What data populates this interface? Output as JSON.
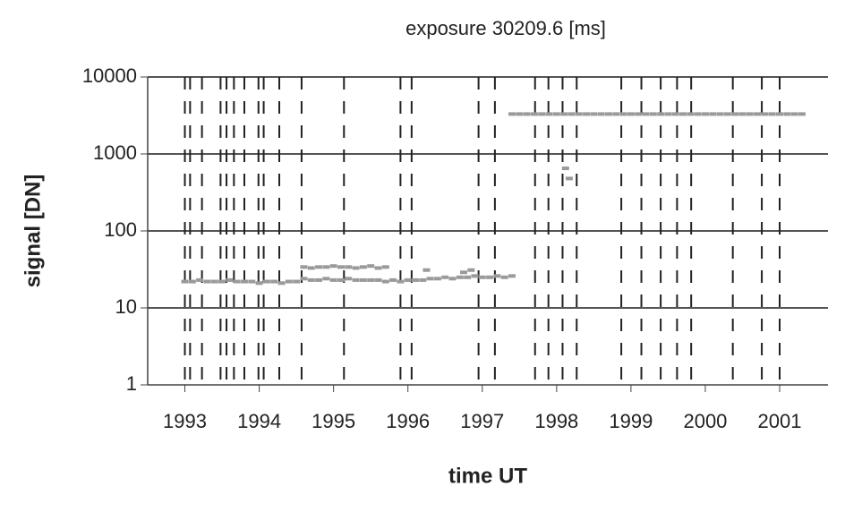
{
  "chart_data": {
    "type": "scatter",
    "title": "exposure 30209.6 [ms]",
    "x_label": "time UT",
    "y_label": "signal [DN]",
    "log_y": true,
    "grid": true,
    "color": "#9a9a9a",
    "marker_line_color": "#222222",
    "xlim": [
      1992.5,
      2001.65
    ],
    "ylim": [
      1,
      10000
    ],
    "xticks": [
      1993,
      1994,
      1995,
      1996,
      1997,
      1998,
      1999,
      2000,
      2001
    ],
    "yticks": [
      1,
      10,
      100,
      1000,
      10000
    ],
    "marker_lines": [
      1993.0,
      1993.07,
      1993.23,
      1993.48,
      1993.56,
      1993.66,
      1993.8,
      1993.99,
      1994.06,
      1994.27,
      1994.57,
      1995.14,
      1995.9,
      1996.05,
      1996.95,
      1997.17,
      1997.71,
      1997.89,
      1998.08,
      1998.27,
      1998.87,
      1999.14,
      1999.4,
      1999.62,
      1999.81,
      2000.37,
      2000.76,
      2001.0
    ],
    "x": [
      1993.0,
      1993.1,
      1993.2,
      1993.3,
      1993.4,
      1993.5,
      1993.6,
      1993.7,
      1993.8,
      1993.9,
      1994.0,
      1994.1,
      1994.2,
      1994.3,
      1994.4,
      1994.5,
      1994.6,
      1994.7,
      1994.8,
      1994.9,
      1995.0,
      1995.1,
      1995.2,
      1995.3,
      1995.4,
      1995.5,
      1995.6,
      1995.7,
      1995.8,
      1995.9,
      1996.0,
      1996.1,
      1996.2,
      1996.3,
      1996.4,
      1996.5,
      1996.6,
      1996.7,
      1996.8,
      1996.9,
      1997.0,
      1997.1,
      1997.2,
      1997.3,
      1997.4,
      1994.6,
      1994.7,
      1994.8,
      1994.9,
      1995.0,
      1995.1,
      1995.2,
      1995.3,
      1995.4,
      1995.5,
      1995.6,
      1995.7,
      1996.25,
      1996.75,
      1996.85,
      1997.4,
      1997.5,
      1997.6,
      1997.7,
      1997.8,
      1997.9,
      1998.0,
      1998.1,
      1998.2,
      1998.3,
      1998.4,
      1998.5,
      1998.6,
      1998.7,
      1998.8,
      1998.9,
      1999.0,
      1999.1,
      1999.2,
      1999.3,
      1999.4,
      1999.5,
      1999.6,
      1999.7,
      1999.8,
      1999.9,
      2000.0,
      2000.1,
      2000.2,
      2000.3,
      2000.4,
      2000.5,
      2000.6,
      2000.7,
      2000.8,
      2000.9,
      2001.0,
      2001.1,
      2001.2,
      2001.3,
      1998.12,
      1998.17
    ],
    "values": [
      22,
      22,
      23,
      22,
      22,
      22,
      23,
      22,
      22,
      22,
      21,
      22,
      22,
      21,
      22,
      22,
      24,
      23,
      23,
      24,
      23,
      23,
      24,
      23,
      23,
      23,
      23,
      22,
      23,
      22,
      23,
      23,
      23,
      24,
      24,
      25,
      24,
      25,
      25,
      26,
      25,
      25,
      26,
      25,
      26,
      34,
      33,
      34,
      34,
      35,
      34,
      34,
      33,
      34,
      35,
      33,
      34,
      31,
      29,
      31,
      3300,
      3300,
      3300,
      3300,
      3300,
      3300,
      3300,
      3300,
      3300,
      3300,
      3300,
      3300,
      3300,
      3300,
      3300,
      3300,
      3300,
      3300,
      3300,
      3300,
      3300,
      3300,
      3300,
      3300,
      3300,
      3300,
      3300,
      3300,
      3300,
      3300,
      3300,
      3300,
      3300,
      3300,
      3300,
      3300,
      3300,
      3300,
      3300,
      3300,
      650,
      480
    ]
  }
}
